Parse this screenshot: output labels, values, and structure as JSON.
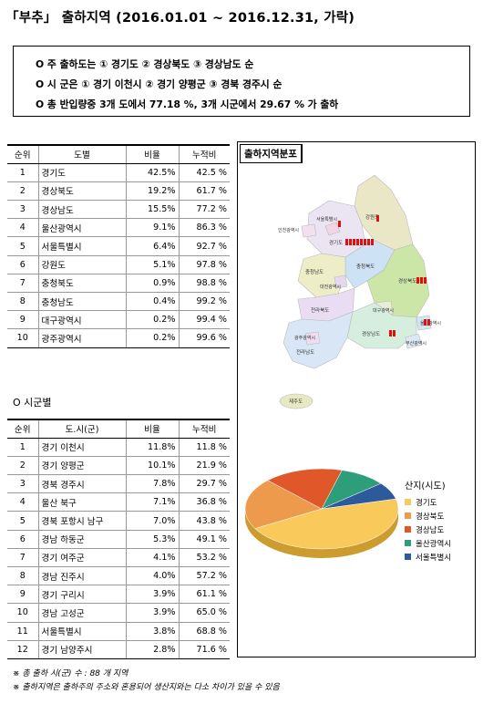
{
  "title": "「부추」 출하지역 (2016.01.01 ~ 2016.12.31, 가락)",
  "summary": [
    "O 주 출하도는 ① 경기도 ② 경상북도 ③ 경상남도 순",
    "O 시 군은 ① 경기 이천시 ② 경기 양평군 ③ 경북 경주시 순",
    "O 총 반입량중 3개 도에서 77.18 %, 3개 시군에서 29.67 % 가 출하"
  ],
  "province_table": {
    "headers": [
      "순위",
      "도별",
      "비율",
      "누적비"
    ],
    "rows": [
      [
        "1",
        "경기도",
        "42.5%",
        "42.5 %"
      ],
      [
        "2",
        "경상북도",
        "19.2%",
        "61.7 %"
      ],
      [
        "3",
        "경상남도",
        "15.5%",
        "77.2 %"
      ],
      [
        "4",
        "울산광역시",
        "9.1%",
        "86.3 %"
      ],
      [
        "5",
        "서울특별시",
        "6.4%",
        "92.7 %"
      ],
      [
        "6",
        "강원도",
        "5.1%",
        "97.8 %"
      ],
      [
        "7",
        "충청북도",
        "0.9%",
        "98.8 %"
      ],
      [
        "8",
        "충청남도",
        "0.4%",
        "99.2 %"
      ],
      [
        "9",
        "대구광역시",
        "0.2%",
        "99.4 %"
      ],
      [
        "10",
        "광주광역시",
        "0.2%",
        "99.6 %"
      ]
    ]
  },
  "section2_title": "O 시군별",
  "city_table": {
    "headers": [
      "순위",
      "도.시(군)",
      "비율",
      "누적비"
    ],
    "rows": [
      [
        "1",
        "경기 이천시",
        "11.8%",
        "11.8 %"
      ],
      [
        "2",
        "경기 양평군",
        "10.1%",
        "21.9 %"
      ],
      [
        "3",
        "경북 경주시",
        "7.8%",
        "29.7 %"
      ],
      [
        "4",
        "울산 북구",
        "7.1%",
        "36.8 %"
      ],
      [
        "5",
        "경북 포항시 남구",
        "7.0%",
        "43.8 %"
      ],
      [
        "6",
        "경남 하동군",
        "5.3%",
        "49.1 %"
      ],
      [
        "7",
        "경기 여주군",
        "4.1%",
        "53.2 %"
      ],
      [
        "8",
        "경남 진주시",
        "4.0%",
        "57.2 %"
      ],
      [
        "9",
        "경기 구리시",
        "3.9%",
        "61.1 %"
      ],
      [
        "10",
        "경남 고성군",
        "3.9%",
        "65.0 %"
      ],
      [
        "11",
        "서울특별시",
        "3.8%",
        "68.8 %"
      ],
      [
        "12",
        "경기 남양주시",
        "2.8%",
        "71.6 %"
      ]
    ]
  },
  "map": {
    "title": "출하지역분포",
    "labels": [
      "강원도",
      "경기도",
      "서울특별시",
      "인천광역시",
      "충청북도",
      "충청남도",
      "대전광역시",
      "경상북도",
      "대구광역시",
      "울산광역시",
      "경상남도",
      "부산광역시",
      "전라북도",
      "전라남도",
      "광주광역시",
      "제주도"
    ]
  },
  "chart_data": {
    "type": "pie",
    "title": "",
    "legend_title": "산지(시도)",
    "legend_placement": "right",
    "categories": [
      "경기도",
      "경상북도",
      "경상남도",
      "울산광역시",
      "서울특별시"
    ],
    "values": [
      42.5,
      19.2,
      15.5,
      9.1,
      6.4
    ],
    "colors": [
      "#F9C95B",
      "#EE9A4D",
      "#E0582A",
      "#2E9E7A",
      "#2D5A9A"
    ]
  },
  "notes": [
    "※ 총 출하 시(군) 수 : 88 개 지역",
    "※ 출하지역은 출하주의 주소와 혼용되어 생산지와는 다소 차이가 있을 수 있음"
  ]
}
